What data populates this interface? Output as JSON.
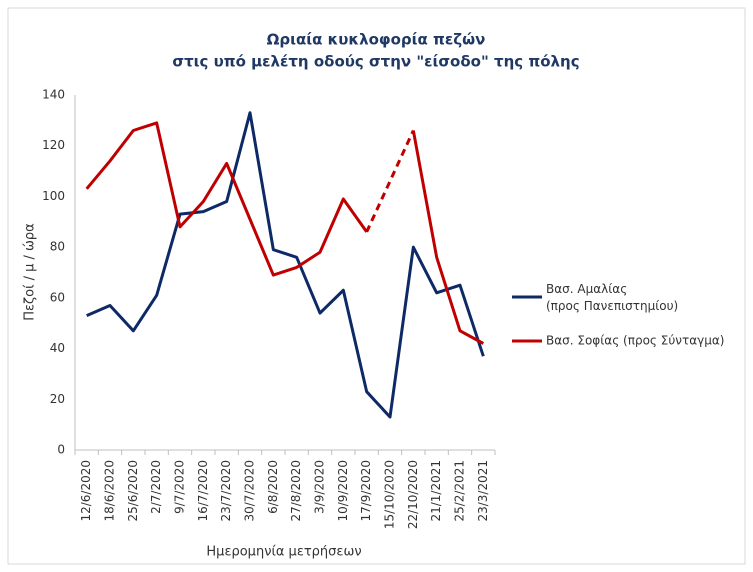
{
  "chart_data": {
    "type": "line",
    "title": [
      "Ωριαία κυκλοφορία πεζών",
      "στις υπό μελέτη οδούς στην \"είσοδο\" της πόλης"
    ],
    "ylabel": "Πεζοί / μ / ώρα",
    "xlabel": "Ημερομηνία μετρήσεων",
    "categories": [
      "12/6/2020",
      "18/6/2020",
      "25/6/2020",
      "2/7/2020",
      "9/7/2020",
      "16/7/2020",
      "23/7/2020",
      "30/7/2020",
      "6/8/2020",
      "27/8/2020",
      "3/9/2020",
      "10/9/2020",
      "17/9/2020",
      "15/10/2020",
      "22/10/2020",
      "21/1/2021",
      "25/2/2021",
      "23/3/2021"
    ],
    "series": [
      {
        "name": "Βασ. Αμαλίας (προς Πανεπιστημίου)",
        "color": "#0e2a66",
        "values": [
          53,
          57,
          47,
          61,
          93,
          94,
          98,
          133,
          79,
          76,
          54,
          63,
          23,
          13,
          80,
          62,
          65,
          37
        ]
      },
      {
        "name": "Βασ. Σοφίας (προς Σύνταγμα)",
        "color": "#c00000",
        "values": [
          103,
          114,
          126,
          129,
          88,
          98,
          113,
          91,
          69,
          72,
          78,
          99,
          86,
          null,
          126,
          76,
          47,
          42
        ]
      }
    ],
    "ylim": [
      0,
      140
    ],
    "yticks": [
      0,
      20,
      40,
      60,
      80,
      100,
      120,
      140
    ],
    "grid": false,
    "legend": "right"
  }
}
